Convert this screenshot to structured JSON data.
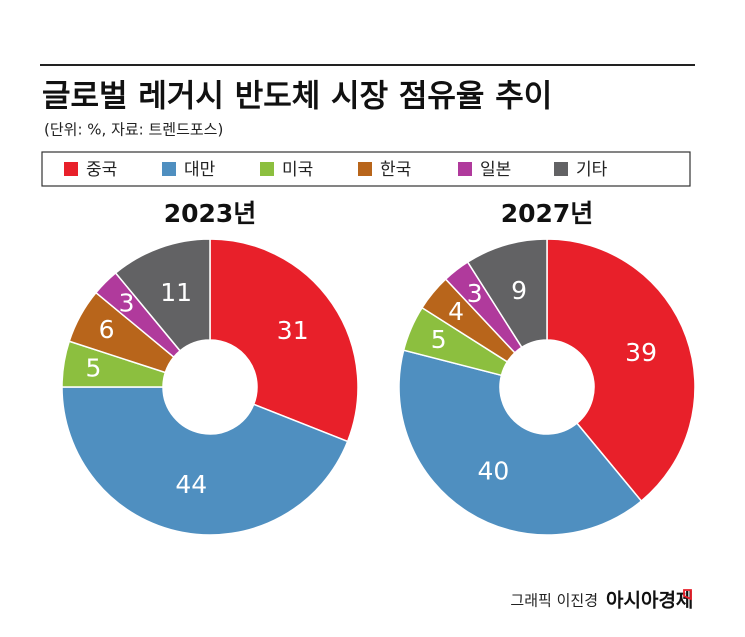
{
  "title": "글로벌 레거시 반도체 시장 점유율 추이",
  "subtitle": "(단위: %, 자료: 트렌드포스)",
  "credit": "그래픽 이진경",
  "brand": "아시아경제",
  "chart_data": [
    {
      "type": "donut",
      "title": "2023년",
      "categories": [
        "중국",
        "대만",
        "미국",
        "한국",
        "일본",
        "기타"
      ],
      "values": [
        31,
        44,
        5,
        6,
        3,
        11
      ],
      "colors": [
        "#e8202a",
        "#4f8fc0",
        "#8cbf3f",
        "#b8651b",
        "#b03a9c",
        "#626264"
      ]
    },
    {
      "type": "donut",
      "title": "2027년",
      "categories": [
        "중국",
        "대만",
        "미국",
        "한국",
        "일본",
        "기타"
      ],
      "values": [
        39,
        40,
        5,
        4,
        3,
        9
      ],
      "colors": [
        "#e8202a",
        "#4f8fc0",
        "#8cbf3f",
        "#b8651b",
        "#b03a9c",
        "#626264"
      ]
    }
  ]
}
